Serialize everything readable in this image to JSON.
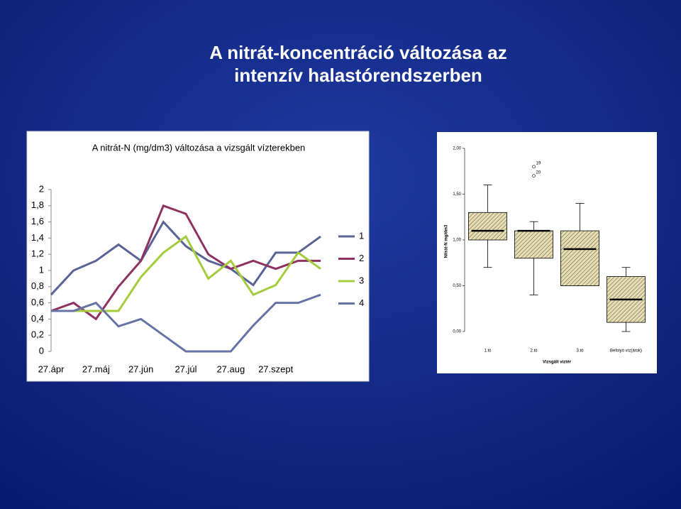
{
  "title_lines": [
    "A nitrát-koncentráció változása az",
    "intenzív halastórendszerben"
  ],
  "chart_data": [
    {
      "type": "line",
      "title": "A nitrát-N (mg/dm3) változása a vizsgált vízterekben",
      "categories": [
        "27.ápr",
        null,
        "27.máj",
        null,
        "27.jún",
        null,
        "27.júl",
        null,
        "27.aug",
        null,
        "27.szept",
        null,
        null
      ],
      "series": [
        {
          "name": "1",
          "color": "#5a6396",
          "values": [
            0.7,
            1.0,
            1.12,
            1.32,
            1.12,
            1.6,
            1.3,
            1.12,
            1.02,
            0.82,
            1.22,
            1.22,
            1.42
          ]
        },
        {
          "name": "2",
          "color": "#8e3262",
          "values": [
            0.5,
            0.6,
            0.4,
            0.8,
            1.12,
            1.8,
            1.7,
            1.2,
            1.02,
            1.12,
            1.02,
            1.12,
            1.12
          ]
        },
        {
          "name": "3",
          "color": "#a4cc3c",
          "values": [
            0.5,
            0.5,
            0.5,
            0.5,
            0.92,
            1.22,
            1.42,
            0.9,
            1.12,
            0.7,
            0.82,
            1.22,
            1.02
          ]
        },
        {
          "name": "4",
          "color": "#6673a6",
          "values": [
            0.5,
            0.5,
            0.6,
            0.31,
            0.4,
            0.2,
            0,
            0,
            0,
            0.32,
            0.6,
            0.6,
            0.7
          ]
        }
      ],
      "ylim": [
        0,
        2
      ],
      "yticks": [
        0,
        {
          "value": 0.2,
          "label": "0,2"
        },
        {
          "value": 0.4,
          "label": "0,4"
        },
        {
          "value": 0.6,
          "label": "0,6"
        },
        {
          "value": 0.8,
          "label": "0,8"
        },
        1,
        {
          "value": 1.2,
          "label": "1,2"
        },
        {
          "value": 1.4,
          "label": "1,4"
        },
        {
          "value": 1.6,
          "label": "1,6"
        },
        {
          "value": 1.8,
          "label": "1,8"
        },
        2
      ],
      "legend": "right",
      "grid": false
    },
    {
      "type": "box",
      "xlabel": "Vizsgált víztér",
      "ylabel": "Nitrát-N mg/dm3",
      "categories": [
        "1.tó",
        "2.tó",
        "3.tó",
        "Befolyó víz(árok)"
      ],
      "boxes": [
        {
          "low": 0.7,
          "q1": 1.0,
          "median": 1.1,
          "q3": 1.3,
          "high": 1.6
        },
        {
          "low": 0.4,
          "q1": 0.8,
          "median": 1.1,
          "q3": 1.1,
          "high": 1.2
        },
        {
          "low": 0.5,
          "q1": 0.5,
          "median": 0.9,
          "q3": 1.1,
          "high": 1.4
        },
        {
          "low": 0.0,
          "q1": 0.1,
          "median": 0.35,
          "q3": 0.6,
          "high": 0.7
        }
      ],
      "outliers": [
        {
          "box": 1,
          "value": 1.8,
          "label": "19"
        },
        {
          "box": 1,
          "value": 1.7,
          "label": "20"
        }
      ],
      "ylim": [
        0,
        2
      ],
      "yticks": [
        {
          "value": 0,
          "label": "0,00"
        },
        {
          "value": 0.5,
          "label": "0,50"
        },
        {
          "value": 1,
          "label": "1,00"
        },
        {
          "value": 1.5,
          "label": "1,50"
        },
        {
          "value": 2,
          "label": "2,00"
        }
      ],
      "color": "#d9cfa0"
    }
  ]
}
